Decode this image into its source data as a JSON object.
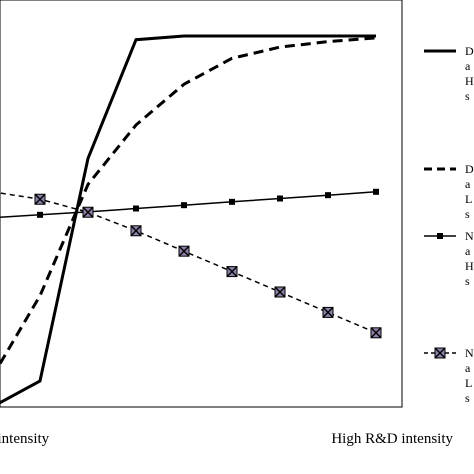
{
  "chart_data": {
    "type": "line",
    "title": "",
    "xlabel": "",
    "ylabel": "",
    "x_tick_labels": [
      "Low R&D intensity",
      "High R&D intensity"
    ],
    "x": [
      0,
      1,
      2,
      3,
      4,
      5,
      6,
      7,
      8
    ],
    "ylim": [
      0,
      100
    ],
    "grid": false,
    "legend_position": "right",
    "series": [
      {
        "name": "D\na\nH\ns",
        "style": "solid-thick",
        "color": "#000000",
        "values": [
          0,
          7,
          67,
          99,
          100,
          100,
          100,
          100,
          100
        ]
      },
      {
        "name": "D\na\nL\ns",
        "style": "dashed-thick",
        "color": "#000000",
        "values": [
          8,
          30,
          60,
          76,
          87,
          94,
          97,
          98.5,
          99.5
        ]
      },
      {
        "name": "N\na\nH\ns",
        "style": "solid-thin-square-markers",
        "color": "#000000",
        "values": [
          51,
          51.8,
          52.6,
          53.5,
          54.4,
          55.3,
          56.2,
          57.1,
          58
        ]
      },
      {
        "name": "N\na\nL\ns",
        "style": "dashed-thin-x-square-markers",
        "color": "#000000",
        "marker_fill": "#8d80a8",
        "values": [
          58,
          56,
          52.5,
          47.5,
          42,
          36.5,
          31,
          25.5,
          20
        ]
      }
    ]
  }
}
